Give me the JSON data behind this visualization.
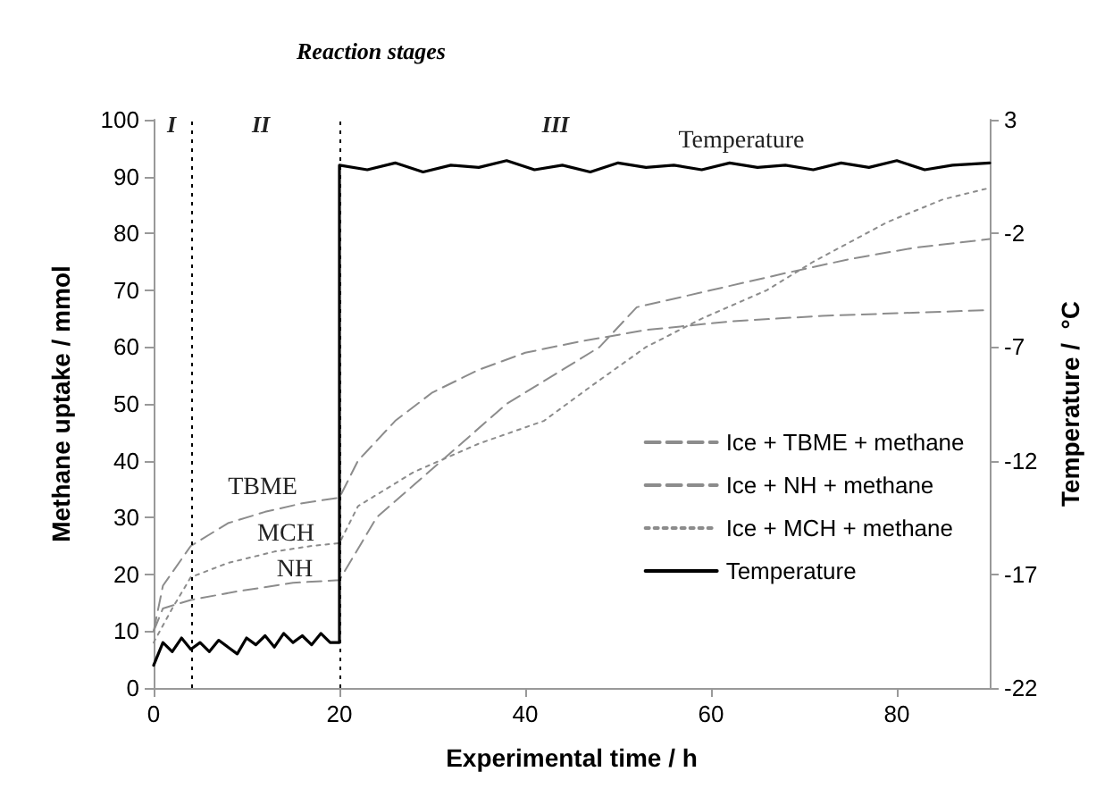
{
  "chart_data": {
    "type": "line",
    "title": "Reaction stages",
    "xlabel": "Experimental time / h",
    "ylabel": "Methane uptake / mmol",
    "y2label": "Temperature /  °C",
    "xlim": [
      0,
      90
    ],
    "xticks": [
      0,
      20,
      40,
      60,
      80
    ],
    "ylim": [
      0,
      100
    ],
    "yticks": [
      0,
      10,
      20,
      30,
      40,
      50,
      60,
      70,
      80,
      90,
      100
    ],
    "y2lim": [
      -22,
      3
    ],
    "y2ticks": [
      -22,
      -17,
      -12,
      -7,
      -2,
      3
    ],
    "grid": false,
    "legend": "right",
    "marker": "none",
    "series": [
      {
        "name": "Ice + TBME + methane",
        "color": "#8c8c8c",
        "line_style": "dashed",
        "x": [
          0,
          1,
          4,
          8,
          12,
          16,
          20,
          22,
          26,
          30,
          35,
          40,
          46,
          53,
          62,
          72,
          90
        ],
        "values": [
          10,
          18,
          25,
          29,
          31,
          32.5,
          33.5,
          40,
          47,
          52,
          56,
          59,
          61,
          63,
          64.5,
          65.5,
          66.5
        ]
      },
      {
        "name": "Ice + NH + methane",
        "color": "#8c8c8c",
        "line_style": "dashed",
        "x": [
          0,
          1,
          4,
          9,
          15,
          20,
          24,
          31,
          38,
          46,
          48,
          52,
          60,
          68,
          75,
          82,
          90
        ],
        "values": [
          10,
          14,
          15.5,
          17,
          18.5,
          19,
          30,
          40,
          50,
          58,
          60,
          67,
          70,
          73,
          75.5,
          77.5,
          79
        ]
      },
      {
        "name": "Ice + MCH + methane",
        "color": "#8c8c8c",
        "line_style": "dotted",
        "x": [
          0,
          2,
          4,
          8,
          13,
          17,
          20,
          22,
          28,
          35,
          42,
          47,
          53,
          59,
          66,
          71,
          79,
          85,
          90
        ],
        "values": [
          8,
          14,
          19.5,
          22,
          24,
          25,
          25.5,
          32,
          38,
          43,
          47,
          53,
          60,
          65,
          70,
          75,
          82,
          86,
          88
        ]
      },
      {
        "name": "Temperature",
        "color": "#000000",
        "line_style": "solid",
        "axis": "y2",
        "x": [
          0,
          1,
          2,
          3,
          4,
          5,
          6,
          7,
          8,
          9,
          10,
          11,
          12,
          13,
          14,
          15,
          16,
          17,
          18,
          19,
          20,
          20,
          23,
          26,
          29,
          32,
          35,
          38,
          41,
          44,
          47,
          50,
          53,
          56,
          59,
          62,
          65,
          68,
          71,
          74,
          77,
          80,
          83,
          86,
          90
        ],
        "values": [
          -21,
          -20,
          -20.4,
          -19.8,
          -20.3,
          -20,
          -20.4,
          -19.9,
          -20.2,
          -20.5,
          -19.8,
          -20.1,
          -19.7,
          -20.2,
          -19.6,
          -20,
          -19.7,
          -20.1,
          -19.6,
          -20,
          -20,
          1,
          0.8,
          1.1,
          0.7,
          1,
          0.9,
          1.2,
          0.8,
          1,
          0.7,
          1.1,
          0.9,
          1,
          0.8,
          1.1,
          0.9,
          1,
          0.8,
          1.1,
          0.9,
          1.2,
          0.8,
          1,
          1.1
        ]
      }
    ],
    "ref_lines": [
      {
        "axis": "x",
        "value": 4,
        "color": "#000000",
        "line_style": "dotted"
      },
      {
        "axis": "x",
        "value": 20,
        "color": "#000000",
        "line_style": "dotted"
      }
    ],
    "annotations": [
      "I",
      "II",
      "III",
      "Temperature",
      "TBME",
      "MCH",
      "NH"
    ]
  }
}
